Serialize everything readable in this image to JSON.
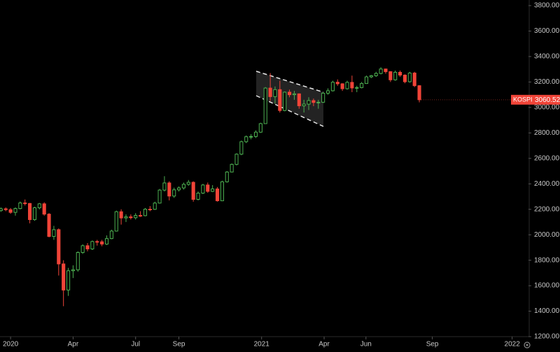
{
  "chart_data": {
    "type": "candlestick",
    "series": [
      {
        "name": "KOSPI",
        "up_color": "#4caf50",
        "down_color": "#f04438",
        "x": [
          -2,
          -1,
          0,
          1,
          2,
          3,
          4,
          5,
          6,
          7,
          8,
          9,
          10,
          11,
          12,
          13,
          14,
          15,
          16,
          17,
          18,
          19,
          20,
          21,
          22,
          23,
          24,
          25,
          26,
          27,
          28,
          29,
          30,
          31,
          32,
          33,
          34,
          35,
          36,
          37,
          38,
          39,
          40,
          41,
          42,
          43,
          44,
          45,
          46,
          47,
          48,
          49,
          50,
          51,
          52,
          53,
          54,
          55,
          56,
          57,
          58,
          59,
          60,
          61,
          62,
          63,
          64,
          65,
          66,
          67,
          68,
          69,
          70,
          71,
          72,
          73,
          74,
          75,
          76,
          77,
          78,
          79,
          80,
          81,
          82,
          83,
          84,
          85
        ],
        "open": [
          2190,
          2204,
          2197,
          2176,
          2206,
          2250,
          2246,
          2119,
          2212,
          2243,
          2162,
          1987,
          2040,
          1771,
          1566,
          1717,
          1725,
          1861,
          1914,
          1889,
          1947,
          1945,
          1927,
          1970,
          2029,
          2181,
          2132,
          2141,
          2134,
          2152,
          2150,
          2201,
          2200,
          2249,
          2351,
          2407,
          2304,
          2353,
          2368,
          2396,
          2412,
          2278,
          2327,
          2391,
          2341,
          2360,
          2267,
          2416,
          2493,
          2553,
          2633,
          2731,
          2770,
          2772,
          2806,
          2873,
          3152,
          3085,
          3140,
          2976,
          3120,
          3100,
          3107,
          3013,
          3026,
          3054,
          3039,
          3041,
          3112,
          3131,
          3198,
          3186,
          3147,
          3197,
          3153,
          3156,
          3188,
          3240,
          3249,
          3267,
          3302,
          3281,
          3217,
          3276,
          3254,
          3202,
          3270,
          3171
        ],
        "high": [
          2215,
          2215,
          2210,
          2215,
          2262,
          2277,
          2250,
          2220,
          2250,
          2255,
          2170,
          2070,
          2050,
          1800,
          1740,
          1760,
          1870,
          1925,
          1935,
          1955,
          1960,
          1960,
          1995,
          2040,
          2190,
          2200,
          2160,
          2160,
          2170,
          2185,
          2210,
          2225,
          2260,
          2360,
          2460,
          2420,
          2370,
          2380,
          2410,
          2430,
          2420,
          2340,
          2400,
          2410,
          2390,
          2375,
          2425,
          2500,
          2560,
          2640,
          2740,
          2780,
          2790,
          2820,
          2880,
          3160,
          3270,
          3165,
          3210,
          3125,
          3140,
          3130,
          3110,
          3060,
          3080,
          3070,
          3060,
          3120,
          3150,
          3210,
          3220,
          3190,
          3210,
          3250,
          3170,
          3200,
          3250,
          3255,
          3280,
          3316,
          3305,
          3285,
          3290,
          3290,
          3260,
          3280,
          3280,
          3175
        ],
        "low": [
          2180,
          2185,
          2165,
          2150,
          2200,
          2230,
          2090,
          2110,
          2200,
          2150,
          1980,
          1960,
          1680,
          1439,
          1520,
          1660,
          1710,
          1850,
          1870,
          1880,
          1915,
          1910,
          1920,
          1965,
          2025,
          2080,
          2100,
          2120,
          2120,
          2140,
          2145,
          2185,
          2195,
          2245,
          2340,
          2270,
          2290,
          2340,
          2355,
          2385,
          2260,
          2270,
          2320,
          2330,
          2335,
          2260,
          2265,
          2410,
          2490,
          2545,
          2625,
          2720,
          2750,
          2760,
          2800,
          2870,
          3050,
          3030,
          2960,
          2970,
          3080,
          3060,
          2990,
          2960,
          2980,
          3010,
          2990,
          3035,
          3100,
          3125,
          3170,
          3130,
          3140,
          3120,
          3120,
          3150,
          3185,
          3230,
          3240,
          3260,
          3265,
          3200,
          3210,
          3240,
          3190,
          3195,
          3160,
          3040
        ],
        "close": [
          2204,
          2197,
          2176,
          2206,
          2250,
          2246,
          2119,
          2212,
          2243,
          2162,
          1987,
          2040,
          1771,
          1566,
          1717,
          1725,
          1861,
          1914,
          1889,
          1947,
          1945,
          1927,
          1970,
          2029,
          2181,
          2132,
          2141,
          2134,
          2152,
          2150,
          2201,
          2200,
          2249,
          2351,
          2407,
          2304,
          2353,
          2368,
          2396,
          2412,
          2278,
          2327,
          2391,
          2341,
          2360,
          2267,
          2416,
          2493,
          2553,
          2633,
          2731,
          2770,
          2772,
          2806,
          2873,
          3152,
          3085,
          3140,
          2976,
          3120,
          3100,
          3107,
          3013,
          3026,
          3054,
          3039,
          3041,
          3112,
          3131,
          3198,
          3186,
          3147,
          3197,
          3153,
          3156,
          3188,
          3240,
          3249,
          3267,
          3302,
          3281,
          3217,
          3276,
          3254,
          3202,
          3270,
          3171,
          3060.52
        ]
      }
    ],
    "xlim": [
      -2.2,
      107.7
    ],
    "xticks": [
      {
        "value": 0,
        "label": "2020"
      },
      {
        "value": 13,
        "label": "Apr"
      },
      {
        "value": 26,
        "label": "Jul"
      },
      {
        "value": 35,
        "label": "Sep"
      },
      {
        "value": 52.2,
        "label": "2021"
      },
      {
        "value": 65.2,
        "label": "Apr"
      },
      {
        "value": 73.9,
        "label": "Jun"
      },
      {
        "value": 87.7,
        "label": "Sep"
      },
      {
        "value": 104.3,
        "label": "2022"
      }
    ],
    "ylim": [
      1200,
      3800
    ],
    "yticks": [
      {
        "value": 1200,
        "label": "1200.00"
      },
      {
        "value": 1400,
        "label": "1400.00"
      },
      {
        "value": 1600,
        "label": "1600.00"
      },
      {
        "value": 1800,
        "label": "1800.00"
      },
      {
        "value": 2000,
        "label": "2000.00"
      },
      {
        "value": 2200,
        "label": "2200.00"
      },
      {
        "value": 2400,
        "label": "2400.00"
      },
      {
        "value": 2600,
        "label": "2600.00"
      },
      {
        "value": 2800,
        "label": "2800.00"
      },
      {
        "value": 3000,
        "label": "3000.00"
      },
      {
        "value": 3200,
        "label": "3200.00"
      },
      {
        "value": 3400,
        "label": "3400.00"
      },
      {
        "value": 3600,
        "label": "3600.00"
      },
      {
        "value": 3800,
        "label": "3800.00"
      }
    ]
  }
}
